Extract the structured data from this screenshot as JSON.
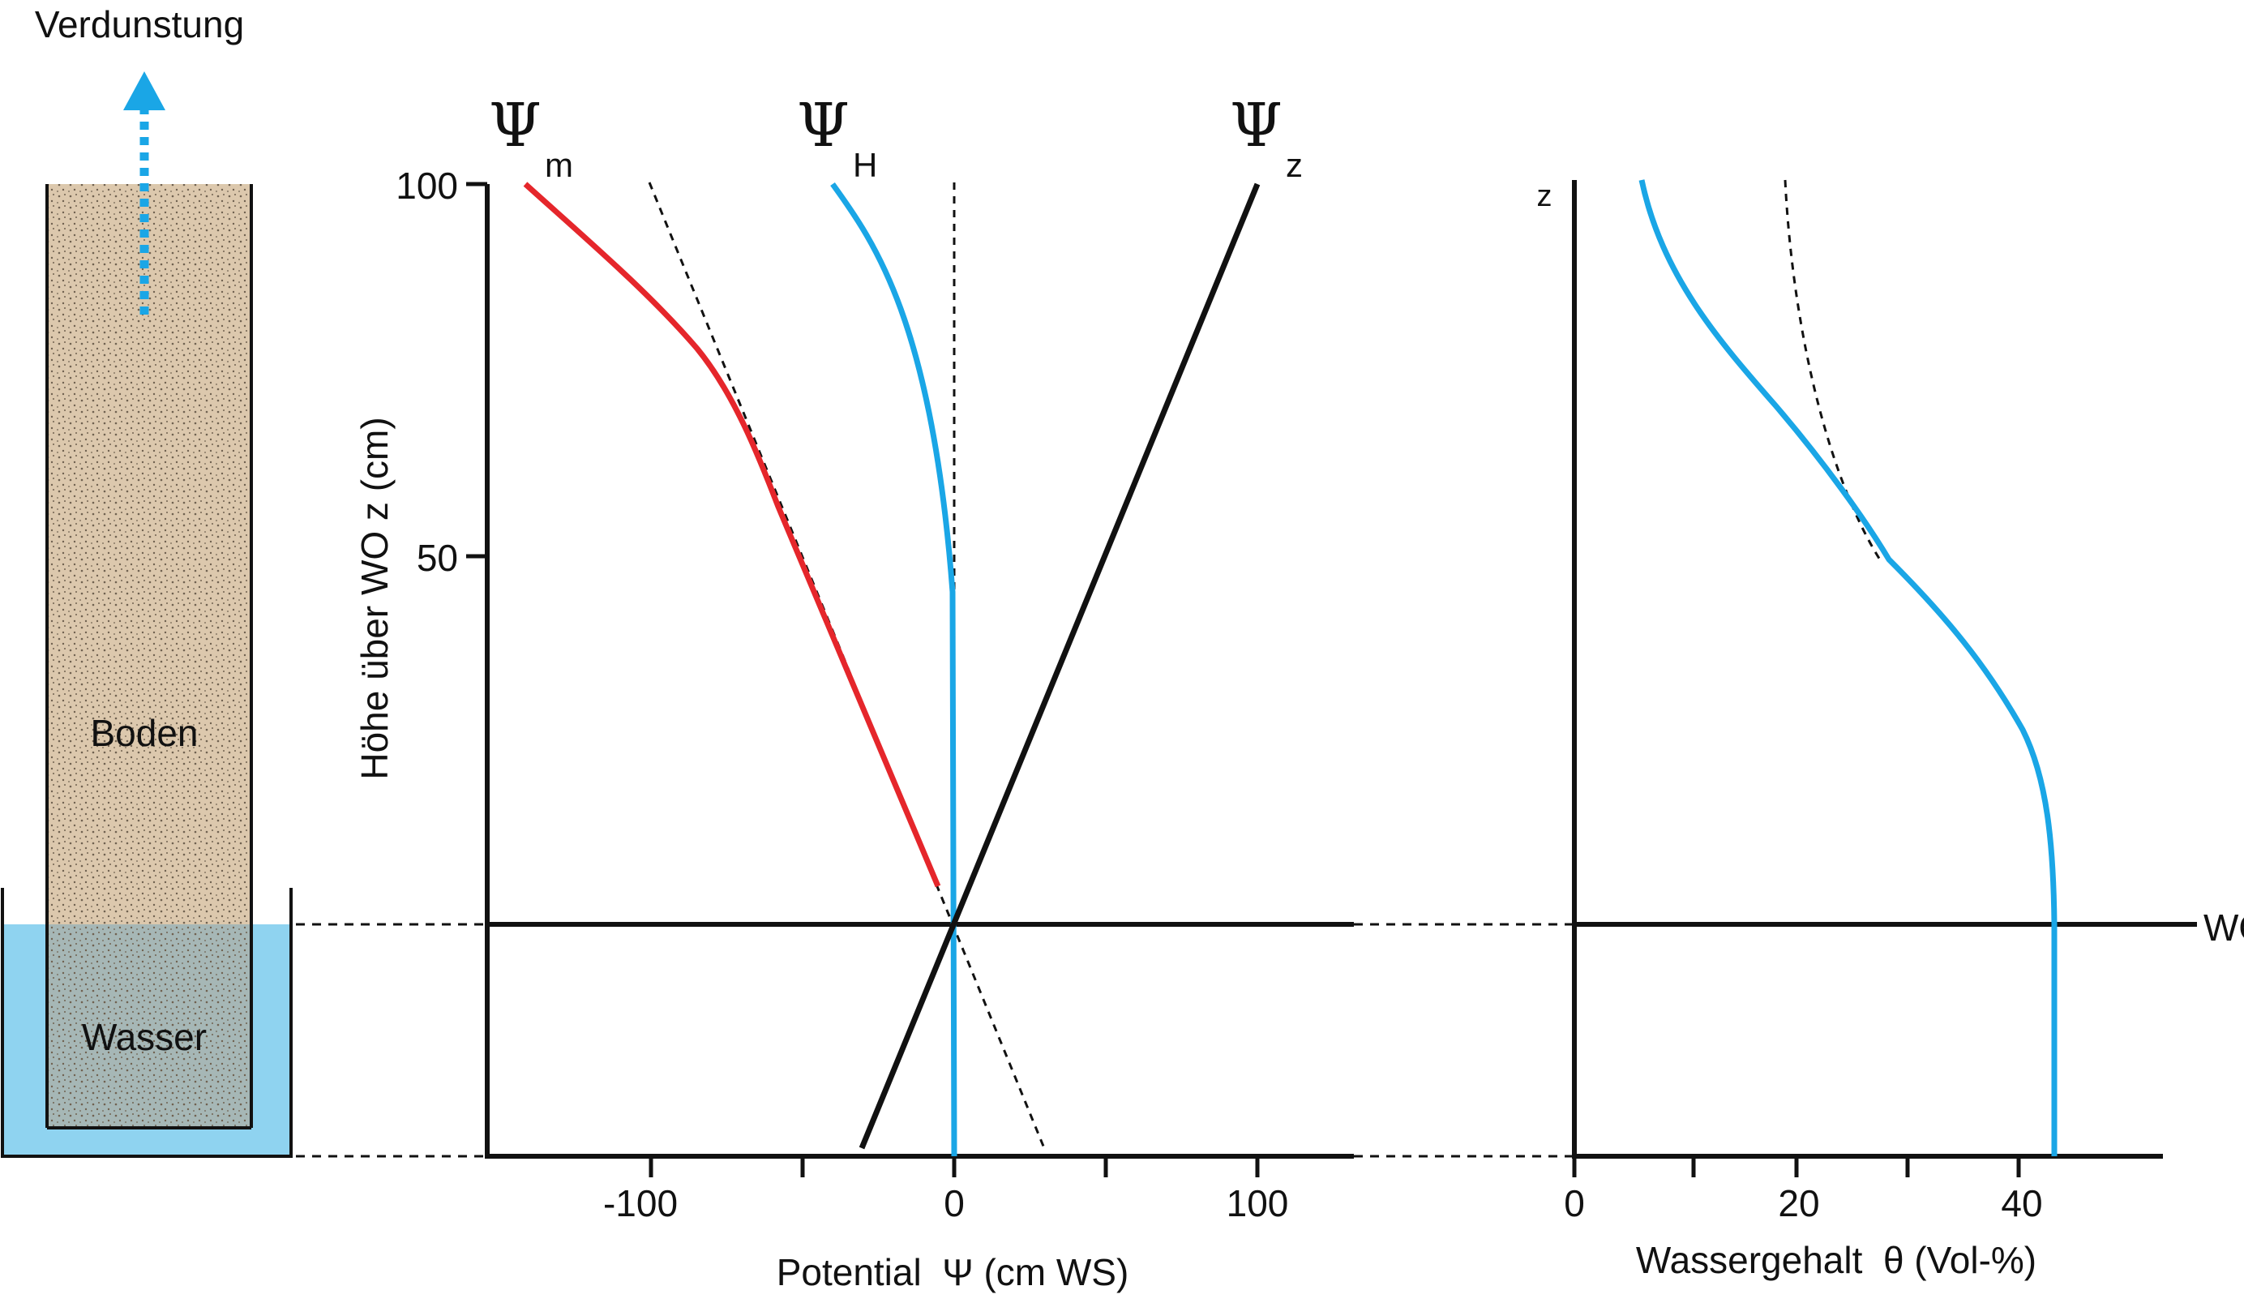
{
  "colors": {
    "soil": "#dcc8ad",
    "water": "#8fd3f0",
    "blue_curve": "#1aa6e6",
    "red_curve": "#e5262b",
    "axis": "#111111"
  },
  "column": {
    "evaporation_label": "Verdunstung",
    "soil_label": "Boden",
    "water_label": "Wasser",
    "arrow_icon": "dotted-up-arrow"
  },
  "potential_panel": {
    "ylabel": "Höhe über WO z (cm)",
    "xlabel": "Potential  Ψ (cm WS)",
    "y_ticks": [
      "100",
      "50"
    ],
    "x_ticks": [
      "-100",
      "0",
      "100"
    ],
    "psi_symbol": "Ψ",
    "curve_labels": {
      "matric_sub": "m",
      "hydraulic_sub": "H",
      "gravity_sub": "z"
    }
  },
  "content_panel": {
    "ylabel": "z",
    "xlabel": "Wassergehalt  θ (Vol-%)",
    "x_ticks": [
      "0",
      "20",
      "40"
    ],
    "water_table_label": "WO"
  },
  "chart_data": [
    {
      "type": "line",
      "title": "",
      "xlabel": "Potential  Ψ (cm WS)",
      "ylabel": "Höhe über WO z (cm)",
      "xlim": [
        -150,
        130
      ],
      "ylim": [
        -30,
        100
      ],
      "series": [
        {
          "name": "Ψm",
          "x": [
            -140,
            -120,
            -100,
            -80,
            -60,
            -50,
            -30,
            -10,
            -5
          ],
          "y": [
            100,
            88,
            76,
            64,
            52,
            43,
            29,
            15,
            5
          ]
        },
        {
          "name": "ΨH",
          "x": [
            -40,
            -30,
            -20,
            -10,
            -4,
            0,
            0,
            0
          ],
          "y": [
            100,
            96,
            90,
            78,
            64,
            45,
            20,
            -30
          ]
        },
        {
          "name": "Ψz",
          "x": [
            -30,
            0,
            100
          ],
          "y": [
            -30,
            0,
            100
          ]
        }
      ]
    },
    {
      "type": "line",
      "title": "",
      "xlabel": "Wassergehalt  θ (Vol-%)",
      "ylabel": "z",
      "xlim": [
        0,
        52
      ],
      "ylim": [
        -30,
        100
      ],
      "series": [
        {
          "name": "θ",
          "x": [
            6,
            8,
            12,
            18,
            24,
            29,
            34,
            38,
            41,
            42.5,
            42.5,
            42.5
          ],
          "y": [
            100,
            90,
            78,
            66,
            56,
            48,
            38,
            28,
            16,
            0,
            -15,
            -30
          ]
        }
      ]
    }
  ]
}
